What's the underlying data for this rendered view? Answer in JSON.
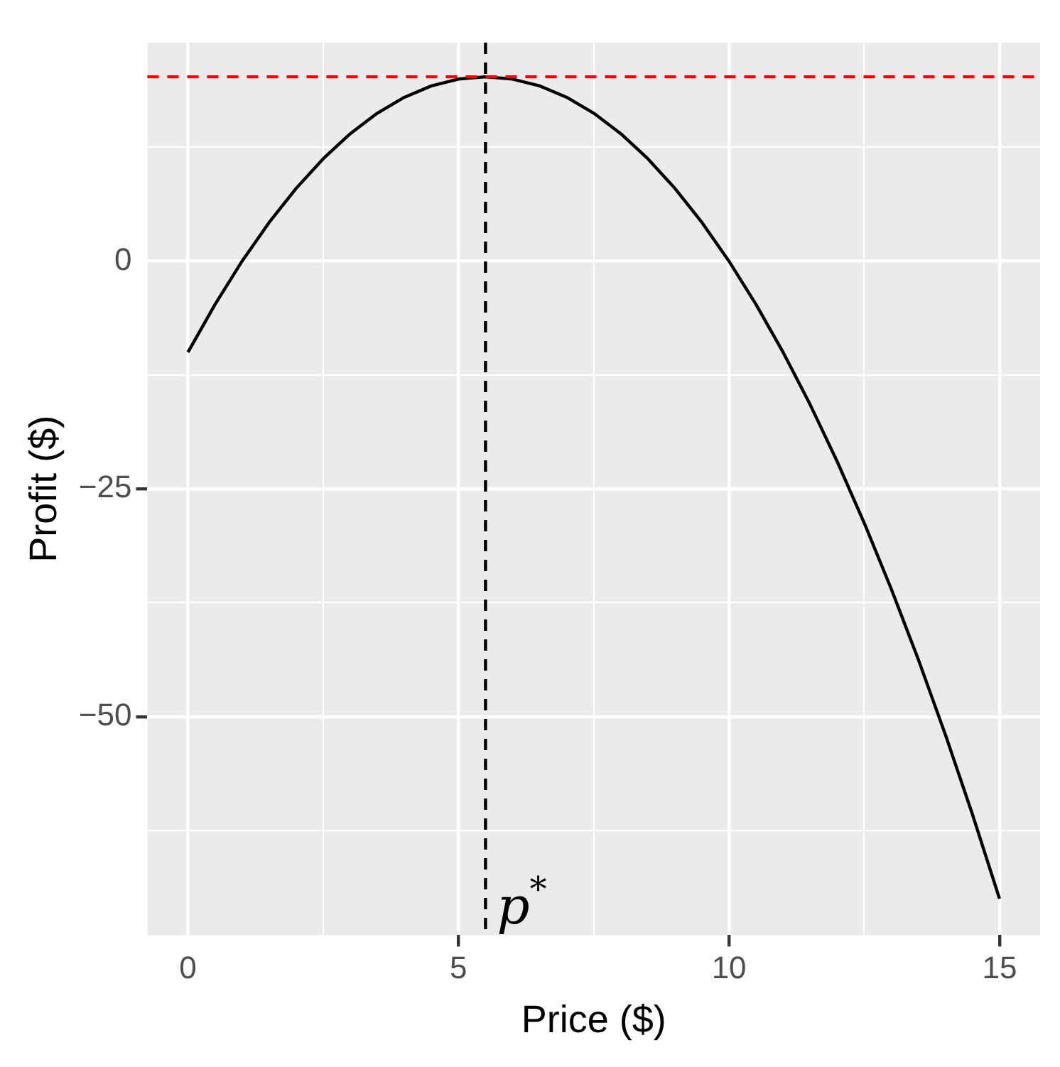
{
  "chart_data": {
    "type": "line",
    "xlabel": "Price ($)",
    "ylabel": "Profit ($)",
    "x": [
      0,
      0.5,
      1,
      1.5,
      2,
      2.5,
      3,
      3.5,
      4,
      4.5,
      5,
      5.5,
      6,
      6.5,
      7,
      7.5,
      8,
      8.5,
      9,
      9.5,
      10,
      10.5,
      11,
      11.5,
      12,
      12.5,
      13,
      13.5,
      14,
      14.5,
      15
    ],
    "series": [
      {
        "color": "#000000",
        "values": [
          -10,
          -4.75,
          0,
          4.25,
          8,
          11.25,
          14,
          16.25,
          18,
          19.25,
          20,
          20.25,
          20,
          19.25,
          18,
          16.25,
          14,
          11.25,
          8,
          4.25,
          0,
          -4.75,
          -10,
          -15.75,
          -22,
          -28.75,
          -36,
          -43.75,
          -52,
          -60.75,
          -70
        ]
      }
    ],
    "xlim": [
      -0.75,
      15.75
    ],
    "ylim": [
      -74,
      24
    ],
    "xticks": [
      0,
      {
        "value": 2.5,
        "label": null
      },
      5,
      {
        "value": 7.5,
        "label": null
      },
      10,
      {
        "value": 12.5,
        "label": null
      },
      15
    ],
    "yticks": [
      {
        "value": -62.5,
        "label": null
      },
      -50,
      {
        "value": -37.5,
        "label": null
      },
      -25,
      {
        "value": -12.5,
        "label": null
      },
      0,
      {
        "value": 12.5,
        "label": null
      }
    ],
    "ref_lines": [
      {
        "axis": "y",
        "value": 20.25,
        "color": "#ff0000",
        "line_style": "dashed"
      },
      {
        "axis": "x",
        "value": 5.5,
        "label": "p$^{*}$",
        "color": "#000000",
        "line_style": "dashed"
      }
    ],
    "grid": true,
    "legend": false,
    "marker": "none",
    "line_style": "solid"
  }
}
